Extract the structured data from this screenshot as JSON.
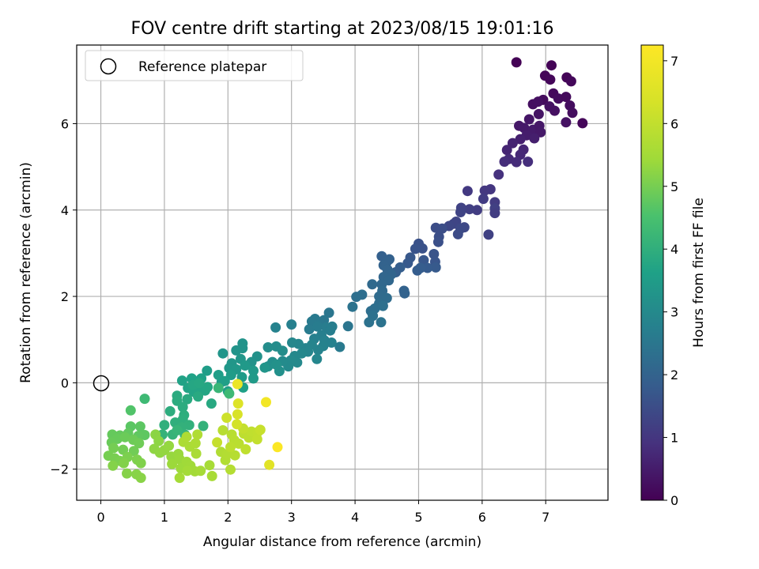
{
  "chart_data": {
    "type": "scatter",
    "title": "FOV centre drift starting at 2023/08/15 19:01:16",
    "xlabel": "Angular distance from reference (arcmin)",
    "ylabel": "Rotation from reference (arcmin)",
    "xlim": [
      -0.38,
      7.98
    ],
    "ylim": [
      -2.72,
      7.82
    ],
    "xticks": [
      0,
      1,
      2,
      3,
      4,
      5,
      6,
      7
    ],
    "xtick_labels": [
      "0",
      "1",
      "2",
      "3",
      "4",
      "5",
      "6",
      "7"
    ],
    "yticks": [
      -2,
      0,
      2,
      4,
      6
    ],
    "ytick_labels": [
      "−2",
      "0",
      "2",
      "4",
      "6"
    ],
    "grid": true,
    "colormap": "viridis",
    "colorbar": {
      "label": "Hours from first FF file",
      "range": [
        0,
        7.25
      ],
      "ticks": [
        0,
        1,
        2,
        3,
        4,
        5,
        6,
        7
      ],
      "tick_labels": [
        "0",
        "1",
        "2",
        "3",
        "4",
        "5",
        "6",
        "7"
      ]
    },
    "legend": {
      "position": "top-left",
      "entries": [
        "Reference platepar"
      ]
    },
    "reference_point": {
      "x": 0,
      "y": 0
    },
    "points": [
      [
        6.54,
        7.42,
        0.02
      ],
      [
        7.09,
        7.35,
        0.05
      ],
      [
        6.99,
        7.11,
        0.08
      ],
      [
        7.07,
        7.02,
        0.1
      ],
      [
        7.33,
        7.07,
        0.07
      ],
      [
        7.4,
        6.98,
        0.12
      ],
      [
        7.12,
        6.7,
        0.15
      ],
      [
        6.96,
        6.55,
        0.18
      ],
      [
        7.2,
        6.58,
        0.2
      ],
      [
        7.32,
        6.62,
        0.16
      ],
      [
        7.38,
        6.42,
        0.22
      ],
      [
        6.8,
        6.45,
        0.25
      ],
      [
        6.88,
        6.51,
        0.28
      ],
      [
        7.06,
        6.4,
        0.3
      ],
      [
        7.14,
        6.3,
        0.27
      ],
      [
        7.42,
        6.25,
        0.24
      ],
      [
        7.58,
        6.01,
        0.1
      ],
      [
        7.32,
        6.03,
        0.32
      ],
      [
        6.89,
        6.22,
        0.35
      ],
      [
        6.74,
        6.1,
        0.38
      ],
      [
        6.58,
        5.95,
        0.42
      ],
      [
        6.66,
        5.9,
        0.45
      ],
      [
        6.8,
        5.86,
        0.48
      ],
      [
        6.9,
        5.95,
        0.4
      ],
      [
        6.92,
        5.8,
        0.44
      ],
      [
        6.7,
        5.73,
        0.52
      ],
      [
        6.82,
        5.66,
        0.55
      ],
      [
        6.6,
        5.64,
        0.58
      ],
      [
        6.48,
        5.55,
        0.62
      ],
      [
        6.39,
        5.39,
        0.66
      ],
      [
        6.65,
        5.4,
        0.7
      ],
      [
        6.6,
        5.28,
        0.74
      ],
      [
        6.42,
        5.18,
        0.78
      ],
      [
        6.54,
        5.11,
        0.8
      ],
      [
        6.35,
        5.12,
        0.83
      ],
      [
        6.72,
        5.12,
        0.86
      ],
      [
        6.26,
        4.82,
        0.9
      ],
      [
        6.13,
        4.48,
        1.0
      ],
      [
        6.04,
        4.45,
        1.03
      ],
      [
        5.77,
        4.44,
        1.06
      ],
      [
        6.2,
        4.18,
        1.1
      ],
      [
        6.02,
        4.26,
        1.12
      ],
      [
        5.92,
        4.0,
        1.15
      ],
      [
        5.8,
        4.02,
        1.18
      ],
      [
        6.2,
        4.04,
        1.2
      ],
      [
        6.2,
        3.93,
        1.14
      ],
      [
        5.67,
        4.05,
        1.25
      ],
      [
        5.66,
        3.95,
        1.28
      ],
      [
        5.59,
        3.73,
        1.3
      ],
      [
        5.55,
        3.68,
        1.32
      ],
      [
        5.48,
        3.63,
        1.35
      ],
      [
        5.72,
        3.6,
        1.38
      ],
      [
        5.66,
        3.57,
        1.4
      ],
      [
        5.62,
        3.44,
        1.44
      ],
      [
        6.1,
        3.43,
        1.22
      ],
      [
        5.27,
        3.59,
        1.48
      ],
      [
        5.37,
        3.57,
        1.5
      ],
      [
        5.32,
        3.38,
        1.52
      ],
      [
        5.31,
        3.26,
        1.55
      ],
      [
        5.0,
        3.22,
        1.58
      ],
      [
        5.06,
        3.11,
        1.6
      ],
      [
        4.95,
        3.1,
        1.62
      ],
      [
        5.24,
        2.98,
        1.64
      ],
      [
        5.26,
        2.8,
        1.67
      ],
      [
        5.08,
        2.84,
        1.7
      ],
      [
        4.87,
        2.9,
        1.72
      ],
      [
        4.83,
        2.77,
        1.75
      ],
      [
        5.27,
        2.67,
        1.78
      ],
      [
        5.14,
        2.66,
        1.8
      ],
      [
        5.03,
        2.66,
        1.83
      ],
      [
        4.98,
        2.6,
        1.85
      ],
      [
        4.71,
        2.67,
        1.87
      ],
      [
        4.64,
        2.56,
        1.9
      ],
      [
        4.42,
        2.93,
        1.92
      ],
      [
        4.54,
        2.86,
        1.95
      ],
      [
        4.5,
        2.8,
        1.97
      ],
      [
        4.45,
        2.72,
        2.0
      ],
      [
        4.51,
        2.62,
        2.02
      ],
      [
        4.57,
        2.51,
        2.05
      ],
      [
        4.45,
        2.45,
        2.07
      ],
      [
        4.53,
        2.37,
        2.1
      ],
      [
        4.42,
        2.28,
        2.12
      ],
      [
        4.27,
        2.28,
        2.15
      ],
      [
        4.77,
        2.13,
        1.98
      ],
      [
        4.78,
        2.07,
        2.0
      ],
      [
        4.43,
        2.13,
        2.18
      ],
      [
        4.38,
        2.0,
        2.2
      ],
      [
        4.5,
        1.96,
        2.22
      ],
      [
        4.38,
        1.84,
        2.25
      ],
      [
        4.25,
        1.66,
        2.28
      ],
      [
        4.31,
        1.72,
        2.3
      ],
      [
        4.44,
        1.78,
        2.32
      ],
      [
        4.28,
        1.55,
        2.35
      ],
      [
        4.22,
        1.4,
        2.38
      ],
      [
        4.41,
        1.4,
        2.4
      ],
      [
        4.11,
        2.04,
        2.27
      ],
      [
        4.02,
        1.99,
        2.3
      ],
      [
        3.96,
        1.76,
        2.4
      ],
      [
        3.89,
        1.31,
        2.45
      ],
      [
        3.76,
        0.83,
        2.6
      ],
      [
        3.59,
        1.62,
        2.48
      ],
      [
        3.51,
        1.45,
        2.52
      ],
      [
        3.45,
        1.36,
        2.55
      ],
      [
        3.37,
        1.48,
        2.58
      ],
      [
        3.32,
        1.42,
        2.6
      ],
      [
        3.28,
        1.24,
        2.62
      ],
      [
        3.41,
        1.3,
        2.64
      ],
      [
        3.55,
        1.28,
        2.66
      ],
      [
        3.64,
        1.3,
        2.68
      ],
      [
        3.61,
        1.21,
        2.7
      ],
      [
        3.47,
        1.1,
        2.72
      ],
      [
        3.36,
        1.02,
        2.74
      ],
      [
        3.52,
        0.98,
        2.76
      ],
      [
        3.63,
        0.93,
        2.78
      ],
      [
        3.5,
        0.85,
        2.8
      ],
      [
        3.42,
        0.76,
        2.82
      ],
      [
        3.32,
        0.88,
        2.84
      ],
      [
        3.22,
        0.8,
        2.86
      ],
      [
        3.26,
        0.72,
        2.88
      ],
      [
        3.11,
        0.9,
        2.9
      ],
      [
        3.01,
        0.93,
        2.92
      ],
      [
        3.0,
        1.35,
        2.75
      ],
      [
        2.75,
        1.28,
        2.8
      ],
      [
        3.16,
        0.68,
        2.94
      ],
      [
        3.05,
        0.62,
        2.96
      ],
      [
        3.09,
        0.47,
        2.98
      ],
      [
        2.99,
        0.52,
        3.0
      ],
      [
        2.95,
        0.38,
        3.02
      ],
      [
        2.86,
        0.5,
        3.04
      ],
      [
        2.76,
        0.84,
        3.06
      ],
      [
        2.63,
        0.82,
        3.08
      ],
      [
        2.86,
        0.74,
        3.1
      ],
      [
        2.7,
        0.48,
        3.12
      ],
      [
        2.63,
        0.38,
        3.14
      ],
      [
        2.81,
        0.27,
        3.16
      ],
      [
        3.4,
        0.55,
        2.9
      ],
      [
        2.46,
        0.61,
        3.2
      ],
      [
        2.37,
        0.48,
        3.22
      ],
      [
        2.23,
        0.91,
        3.24
      ],
      [
        2.23,
        0.8,
        3.26
      ],
      [
        2.13,
        0.75,
        3.28
      ],
      [
        1.92,
        0.68,
        3.3
      ],
      [
        2.2,
        0.55,
        3.32
      ],
      [
        2.06,
        0.45,
        3.34
      ],
      [
        2.02,
        0.34,
        3.36
      ],
      [
        2.13,
        0.31,
        3.38
      ],
      [
        2.27,
        0.4,
        3.4
      ],
      [
        2.4,
        0.28,
        3.42
      ],
      [
        2.4,
        0.1,
        3.44
      ],
      [
        2.22,
        0.13,
        3.46
      ],
      [
        2.05,
        0.18,
        3.48
      ],
      [
        1.9,
        0.02,
        3.5
      ],
      [
        1.67,
        0.28,
        3.52
      ],
      [
        1.85,
        0.18,
        3.54
      ],
      [
        1.95,
        0.04,
        3.56
      ],
      [
        2.0,
        -0.2,
        3.58
      ],
      [
        2.24,
        -0.11,
        3.6
      ],
      [
        2.58,
        0.35,
        3.3
      ],
      [
        2.76,
        0.42,
        3.2
      ],
      [
        1.58,
        0.1,
        3.62
      ],
      [
        1.43,
        0.1,
        3.64
      ],
      [
        1.28,
        0.05,
        3.66
      ],
      [
        1.37,
        -0.12,
        3.68
      ],
      [
        1.46,
        -0.21,
        3.7
      ],
      [
        1.55,
        -0.22,
        3.72
      ],
      [
        1.64,
        -0.18,
        3.74
      ],
      [
        1.68,
        -0.1,
        3.76
      ],
      [
        1.45,
        -0.05,
        3.78
      ],
      [
        1.55,
        -0.01,
        3.8
      ],
      [
        1.74,
        -0.48,
        3.82
      ],
      [
        1.53,
        -0.32,
        3.84
      ],
      [
        1.36,
        -0.38,
        3.86
      ],
      [
        1.2,
        -0.3,
        3.88
      ],
      [
        1.2,
        -0.42,
        3.9
      ],
      [
        1.29,
        -0.56,
        3.92
      ],
      [
        1.09,
        -0.66,
        3.94
      ],
      [
        1.31,
        -0.75,
        3.96
      ],
      [
        1.29,
        -0.85,
        3.98
      ],
      [
        1.17,
        -0.92,
        4.0
      ],
      [
        1.0,
        -0.98,
        4.02
      ],
      [
        1.39,
        -0.98,
        4.04
      ],
      [
        1.27,
        -1.03,
        4.06
      ],
      [
        1.61,
        -1.0,
        4.08
      ],
      [
        0.97,
        -1.2,
        4.1
      ],
      [
        1.13,
        -1.2,
        4.12
      ],
      [
        1.32,
        -1.2,
        4.14
      ],
      [
        1.2,
        -1.1,
        4.16
      ],
      [
        1.85,
        -0.12,
        4.2
      ],
      [
        2.02,
        -0.25,
        4.3
      ],
      [
        0.69,
        -0.37,
        4.3
      ],
      [
        0.47,
        -0.64,
        4.6
      ],
      [
        0.47,
        -1.01,
        4.7
      ],
      [
        0.62,
        -1.01,
        4.72
      ],
      [
        0.69,
        -1.21,
        4.74
      ],
      [
        0.59,
        -1.23,
        4.76
      ],
      [
        0.43,
        -1.17,
        4.78
      ],
      [
        0.3,
        -1.22,
        4.8
      ],
      [
        0.18,
        -1.2,
        4.82
      ],
      [
        0.26,
        -1.3,
        4.84
      ],
      [
        0.17,
        -1.38,
        4.86
      ],
      [
        0.38,
        -1.26,
        4.88
      ],
      [
        0.51,
        -1.32,
        4.9
      ],
      [
        0.6,
        -1.4,
        4.92
      ],
      [
        0.52,
        -1.58,
        4.94
      ],
      [
        0.35,
        -1.55,
        4.96
      ],
      [
        0.2,
        -1.51,
        4.98
      ],
      [
        0.12,
        -1.69,
        5.0
      ],
      [
        0.22,
        -1.75,
        5.02
      ],
      [
        0.3,
        -1.81,
        5.04
      ],
      [
        0.42,
        -1.72,
        5.06
      ],
      [
        0.57,
        -1.78,
        5.08
      ],
      [
        0.63,
        -1.86,
        5.1
      ],
      [
        0.36,
        -1.86,
        5.12
      ],
      [
        0.19,
        -1.92,
        5.14
      ],
      [
        0.41,
        -2.1,
        5.16
      ],
      [
        0.56,
        -2.12,
        5.18
      ],
      [
        0.63,
        -2.2,
        5.2
      ],
      [
        0.86,
        -1.2,
        5.22
      ],
      [
        0.91,
        -1.35,
        5.24
      ],
      [
        0.84,
        -1.53,
        5.26
      ],
      [
        0.93,
        -1.62,
        5.28
      ],
      [
        1.0,
        -1.56,
        5.3
      ],
      [
        1.07,
        -1.46,
        5.32
      ],
      [
        1.11,
        -1.71,
        5.34
      ],
      [
        1.22,
        -1.65,
        5.36
      ],
      [
        1.24,
        -1.77,
        5.38
      ],
      [
        1.12,
        -1.88,
        5.4
      ],
      [
        1.26,
        -1.98,
        5.42
      ],
      [
        1.35,
        -1.83,
        5.44
      ],
      [
        1.41,
        -1.92,
        5.46
      ],
      [
        1.48,
        -2.05,
        5.48
      ],
      [
        1.36,
        -2.04,
        5.5
      ],
      [
        1.24,
        -2.2,
        5.52
      ],
      [
        1.57,
        -2.04,
        5.54
      ],
      [
        1.71,
        -1.91,
        5.56
      ],
      [
        1.75,
        -2.16,
        5.58
      ],
      [
        1.5,
        -1.64,
        5.6
      ],
      [
        1.4,
        -1.48,
        5.62
      ],
      [
        1.3,
        -1.37,
        5.64
      ],
      [
        1.49,
        -1.4,
        5.66
      ],
      [
        1.35,
        -1.25,
        5.68
      ],
      [
        1.52,
        -1.2,
        5.7
      ],
      [
        1.89,
        -1.6,
        5.72
      ],
      [
        1.96,
        -1.79,
        5.74
      ],
      [
        1.99,
        -1.65,
        5.76
      ],
      [
        2.04,
        -2.01,
        5.78
      ],
      [
        2.11,
        -1.68,
        5.8
      ],
      [
        1.92,
        -1.1,
        5.82
      ],
      [
        2.06,
        -1.2,
        5.84
      ],
      [
        2.1,
        -1.33,
        5.86
      ],
      [
        2.17,
        -1.41,
        5.88
      ],
      [
        2.04,
        -1.49,
        5.9
      ],
      [
        2.25,
        -1.18,
        5.92
      ],
      [
        2.33,
        -1.27,
        5.94
      ],
      [
        2.28,
        -1.54,
        5.96
      ],
      [
        2.37,
        -1.13,
        5.98
      ],
      [
        2.47,
        -1.14,
        6.0
      ],
      [
        2.46,
        -1.31,
        6.02
      ],
      [
        2.24,
        -1.06,
        6.04
      ],
      [
        1.83,
        -1.38,
        6.06
      ],
      [
        1.98,
        -0.81,
        6.2
      ],
      [
        2.14,
        -0.96,
        6.3
      ],
      [
        2.15,
        -0.73,
        6.4
      ],
      [
        2.16,
        -0.48,
        6.5
      ],
      [
        2.51,
        -1.09,
        6.1
      ],
      [
        2.6,
        -0.45,
        7.0
      ],
      [
        2.78,
        -1.49,
        7.2
      ],
      [
        2.65,
        -1.9,
        6.6
      ],
      [
        2.15,
        -0.03,
        6.8
      ]
    ]
  }
}
